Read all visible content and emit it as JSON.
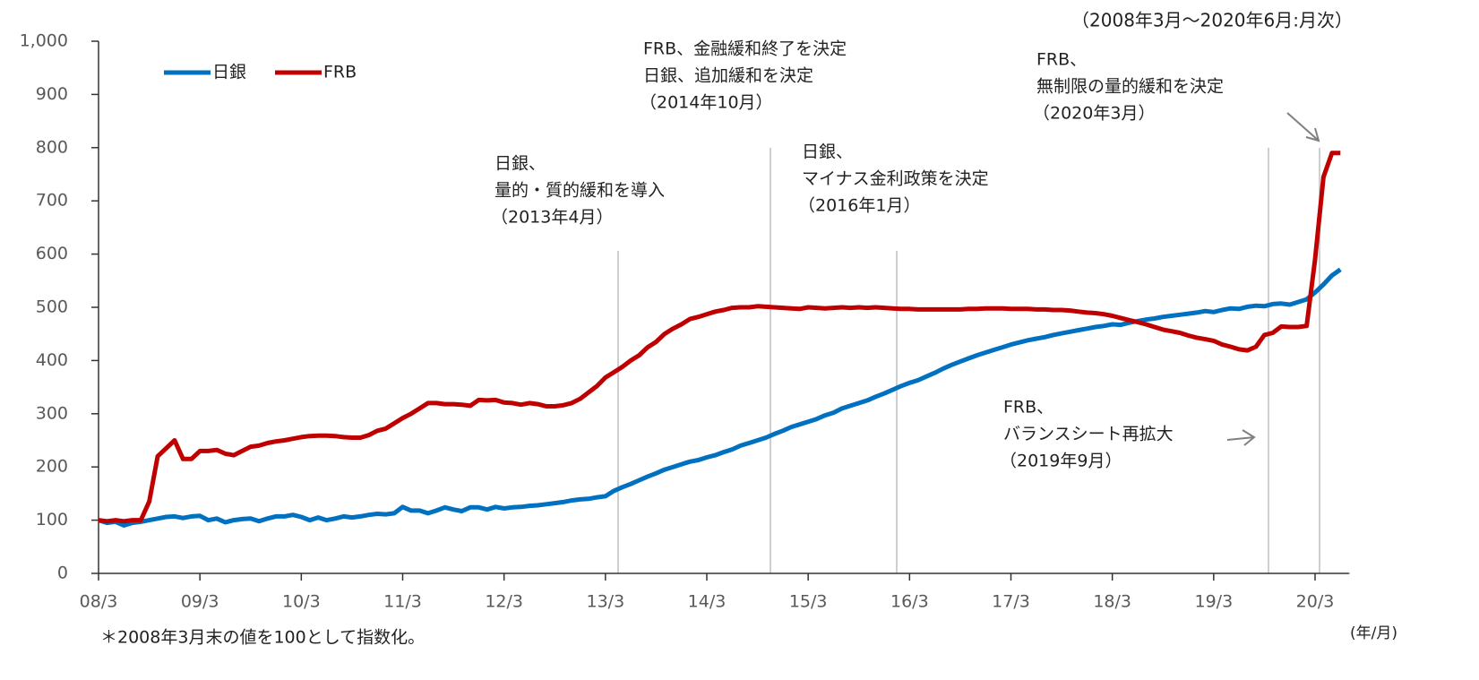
{
  "chart_data": {
    "type": "line",
    "title": "（2008年3月～2020年6月:月次）",
    "note": "＊2008年3月末の値を100として指数化。",
    "x_label": "(年/月)",
    "categories": [
      "08/3",
      null,
      null,
      null,
      null,
      null,
      null,
      null,
      null,
      null,
      null,
      null,
      "09/3",
      null,
      null,
      null,
      null,
      null,
      null,
      null,
      null,
      null,
      null,
      null,
      "10/3",
      null,
      null,
      null,
      null,
      null,
      null,
      null,
      null,
      null,
      null,
      null,
      "11/3",
      null,
      null,
      null,
      null,
      null,
      null,
      null,
      null,
      null,
      null,
      null,
      "12/3",
      null,
      null,
      null,
      null,
      null,
      null,
      null,
      null,
      null,
      null,
      null,
      "13/3",
      null,
      null,
      null,
      null,
      null,
      null,
      null,
      null,
      null,
      null,
      null,
      "14/3",
      null,
      null,
      null,
      null,
      null,
      null,
      null,
      null,
      null,
      null,
      null,
      "15/3",
      null,
      null,
      null,
      null,
      null,
      null,
      null,
      null,
      null,
      null,
      null,
      "16/3",
      null,
      null,
      null,
      null,
      null,
      null,
      null,
      null,
      null,
      null,
      null,
      "17/3",
      null,
      null,
      null,
      null,
      null,
      null,
      null,
      null,
      null,
      null,
      null,
      "18/3",
      null,
      null,
      null,
      null,
      null,
      null,
      null,
      null,
      null,
      null,
      null,
      "19/3",
      null,
      null,
      null,
      null,
      null,
      null,
      null,
      null,
      null,
      null,
      null,
      "20/3",
      null,
      null,
      null
    ],
    "series": [
      {
        "name": "日銀",
        "color": "#0070c0",
        "values": [
          100,
          95,
          97,
          90,
          95,
          97,
          100,
          103,
          106,
          107,
          104,
          107,
          108,
          100,
          103,
          96,
          100,
          102,
          103,
          98,
          103,
          107,
          107,
          110,
          106,
          100,
          105,
          100,
          103,
          107,
          105,
          107,
          110,
          112,
          111,
          113,
          125,
          118,
          118,
          113,
          118,
          124,
          120,
          117,
          124,
          124,
          120,
          125,
          122,
          124,
          125,
          127,
          128,
          130,
          132,
          134,
          137,
          139,
          140,
          143,
          145,
          155,
          162,
          168,
          175,
          182,
          188,
          195,
          200,
          205,
          210,
          213,
          218,
          222,
          228,
          233,
          240,
          245,
          250,
          255,
          262,
          268,
          275,
          280,
          285,
          290,
          297,
          302,
          310,
          315,
          320,
          325,
          332,
          338,
          345,
          352,
          358,
          363,
          370,
          377,
          385,
          392,
          398,
          404,
          410,
          415,
          420,
          425,
          430,
          434,
          438,
          441,
          444,
          448,
          451,
          454,
          457,
          460,
          463,
          465,
          468,
          467,
          471,
          474,
          477,
          479,
          482,
          484,
          486,
          488,
          490,
          493,
          491,
          495,
          498,
          497,
          501,
          503,
          502,
          506,
          507,
          505,
          510,
          515,
          528,
          543,
          560,
          571
        ]
      },
      {
        "name": "FRB",
        "color": "#c00000",
        "values": [
          100,
          98,
          100,
          98,
          100,
          100,
          135,
          220,
          235,
          250,
          215,
          215,
          230,
          230,
          232,
          225,
          222,
          230,
          238,
          240,
          245,
          248,
          250,
          253,
          256,
          258,
          259,
          259,
          258,
          256,
          255,
          255,
          260,
          268,
          272,
          282,
          292,
          300,
          310,
          320,
          320,
          318,
          318,
          317,
          315,
          326,
          325,
          326,
          321,
          320,
          317,
          320,
          318,
          314,
          314,
          316,
          320,
          328,
          340,
          352,
          368,
          378,
          388,
          400,
          410,
          425,
          435,
          450,
          460,
          468,
          478,
          482,
          487,
          492,
          495,
          499,
          500,
          500,
          502,
          501,
          500,
          499,
          498,
          497,
          500,
          499,
          498,
          499,
          500,
          499,
          500,
          499,
          500,
          499,
          498,
          497,
          497,
          496,
          496,
          496,
          496,
          496,
          496,
          497,
          497,
          498,
          498,
          498,
          497,
          497,
          497,
          496,
          496,
          495,
          495,
          494,
          492,
          490,
          489,
          487,
          484,
          480,
          476,
          472,
          468,
          463,
          458,
          455,
          452,
          447,
          443,
          440,
          437,
          430,
          426,
          421,
          419,
          426,
          448,
          452,
          464,
          463,
          463,
          465,
          590,
          745,
          790,
          790
        ]
      }
    ],
    "ylim": [
      0,
      1000
    ],
    "yticks": [
      0,
      100,
      200,
      300,
      400,
      500,
      600,
      700,
      800,
      900,
      {
        "value": 1000,
        "label": "1,000"
      }
    ],
    "annotations": [
      [
        "日銀、",
        "量的・質的緩和を導入",
        "（2013年4月）"
      ],
      [
        "FRB、金融緩和終了を決定",
        "日銀、追加緩和を決定",
        "（2014年10月）"
      ],
      [
        "日銀、",
        "マイナス金利政策を決定",
        "（2016年1月）"
      ],
      [
        "FRB、",
        "無制限の量的緩和を決定",
        "（2020年3月）"
      ],
      [
        "FRB、",
        "バランスシート再拡大",
        "（2019年9月）"
      ]
    ]
  }
}
